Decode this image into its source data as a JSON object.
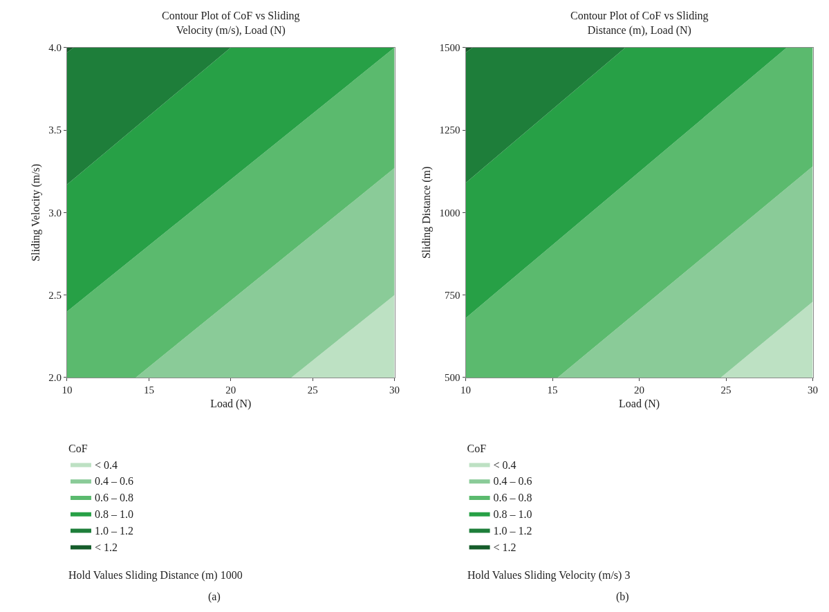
{
  "chart_data": [
    {
      "type": "area",
      "title": "Contour Plot of CoF vs Sliding\nVelocity (m/s), Load (N)",
      "xlabel": "Load (N)",
      "ylabel": "Sliding Velocity (m/s)",
      "legend_title": "CoF",
      "legend": "bottom",
      "xlim": [
        10,
        30
      ],
      "xticks": [
        10,
        15,
        20,
        25,
        30
      ],
      "ylim": [
        2,
        4
      ],
      "yticks": [
        {
          "value": 2,
          "label": "2.0"
        },
        {
          "value": 2.5,
          "label": "2.5"
        },
        {
          "value": 3,
          "label": "3.0"
        },
        {
          "value": 3.5,
          "label": "3.5"
        },
        {
          "value": 4,
          "label": "4.0"
        }
      ],
      "series": [
        {
          "name": "< 0.4",
          "color": "#bde1c3",
          "x": [
            23.7,
            30,
            30
          ],
          "values": [
            2,
            2,
            2.5
          ]
        },
        {
          "name": "0.4 – 0.6",
          "color": "#8acb98",
          "x": [
            14.2,
            23.7,
            30,
            30
          ],
          "values": [
            2,
            2,
            2.5,
            3.27
          ]
        },
        {
          "name": "0.6 – 0.8",
          "color": "#5bba6e",
          "x": [
            10,
            14.2,
            30,
            30,
            10
          ],
          "values": [
            2,
            2,
            3.27,
            4,
            2.4
          ]
        },
        {
          "name": "0.8 – 1.0",
          "color": "#27a046",
          "x": [
            10,
            30,
            20,
            10
          ],
          "values": [
            2.4,
            4,
            4,
            3.17
          ]
        },
        {
          "name": "1.0 – 1.2",
          "color": "#1e7e3a",
          "x": [
            10,
            20,
            10.4,
            10
          ],
          "values": [
            3.17,
            4,
            4,
            3.97
          ]
        },
        {
          "name": "< 1.2",
          "color": "#155c2a",
          "x": [
            10,
            10.4,
            10
          ],
          "values": [
            3.97,
            4,
            4
          ]
        }
      ],
      "annotations": [
        "Hold Values Sliding Distance (m) 1000",
        "(a)"
      ]
    },
    {
      "type": "area",
      "title": "Contour Plot of CoF vs Sliding\nDistance (m), Load (N)",
      "xlabel": "Load (N)",
      "ylabel": "Sliding Distance (m)",
      "legend_title": "CoF",
      "legend": "bottom",
      "xlim": [
        10,
        30
      ],
      "xticks": [
        10,
        15,
        20,
        25,
        30
      ],
      "ylim": [
        500,
        1500
      ],
      "yticks": [
        500,
        750,
        1000,
        1250,
        1500
      ],
      "series": [
        {
          "name": "< 0.4",
          "color": "#bde1c3",
          "x": [
            24.7,
            30,
            30
          ],
          "values": [
            500,
            500,
            730
          ]
        },
        {
          "name": "0.4 – 0.6",
          "color": "#8acb98",
          "x": [
            15.3,
            24.7,
            30,
            30
          ],
          "values": [
            500,
            500,
            730,
            1140
          ]
        },
        {
          "name": "0.6 – 0.8",
          "color": "#5bba6e",
          "x": [
            10,
            15.3,
            30,
            30,
            28.5,
            10
          ],
          "values": [
            500,
            500,
            1140,
            1500,
            1500,
            680
          ]
        },
        {
          "name": "0.8 – 1.0",
          "color": "#27a046",
          "x": [
            10,
            28.5,
            19.2,
            10
          ],
          "values": [
            680,
            1500,
            1500,
            1090
          ]
        },
        {
          "name": "1.0 – 1.2",
          "color": "#1e7e3a",
          "x": [
            10,
            19.2,
            10.4,
            10
          ],
          "values": [
            1090,
            1500,
            1500,
            1485
          ]
        },
        {
          "name": "< 1.2",
          "color": "#155c2a",
          "x": [
            10,
            10.4,
            10
          ],
          "values": [
            1485,
            1500,
            1500
          ]
        }
      ],
      "annotations": [
        "Hold Values Sliding Velocity (m/s) 3",
        "(b)"
      ]
    }
  ]
}
